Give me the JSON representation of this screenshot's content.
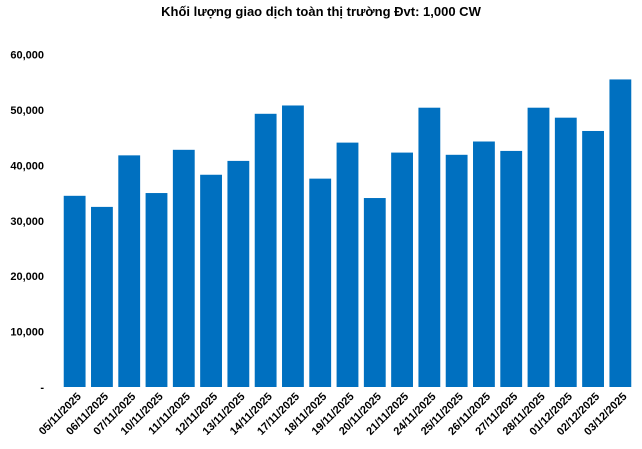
{
  "chart_data": {
    "type": "bar",
    "title": "Khối lượng giao dịch toàn thị trường Đvt: 1,000 CW",
    "xlabel": "",
    "ylabel": "",
    "ylim": [
      0,
      60000
    ],
    "ytick_values": [
      0,
      10000,
      20000,
      30000,
      40000,
      50000,
      60000
    ],
    "ytick_labels": [
      "-",
      "10,000",
      "20,000",
      "30,000",
      "40,000",
      "50,000",
      "60,000"
    ],
    "grid": false,
    "legend": "none",
    "bar_color": "#0070C0",
    "categories": [
      "05/11/2025",
      "06/11/2025",
      "07/11/2025",
      "10/11/2025",
      "11/11/2025",
      "12/11/2025",
      "13/11/2025",
      "14/11/2025",
      "17/11/2025",
      "18/11/2025",
      "19/11/2025",
      "20/11/2025",
      "21/11/2025",
      "24/11/2025",
      "25/11/2025",
      "26/11/2025",
      "27/11/2025",
      "28/11/2025",
      "01/12/2025",
      "02/12/2025",
      "03/12/2025"
    ],
    "values": [
      34500,
      32500,
      41800,
      35000,
      42800,
      38300,
      40800,
      49300,
      50800,
      37600,
      44100,
      34100,
      42300,
      50400,
      41900,
      44300,
      42600,
      50400,
      48600,
      46200,
      55500
    ]
  }
}
